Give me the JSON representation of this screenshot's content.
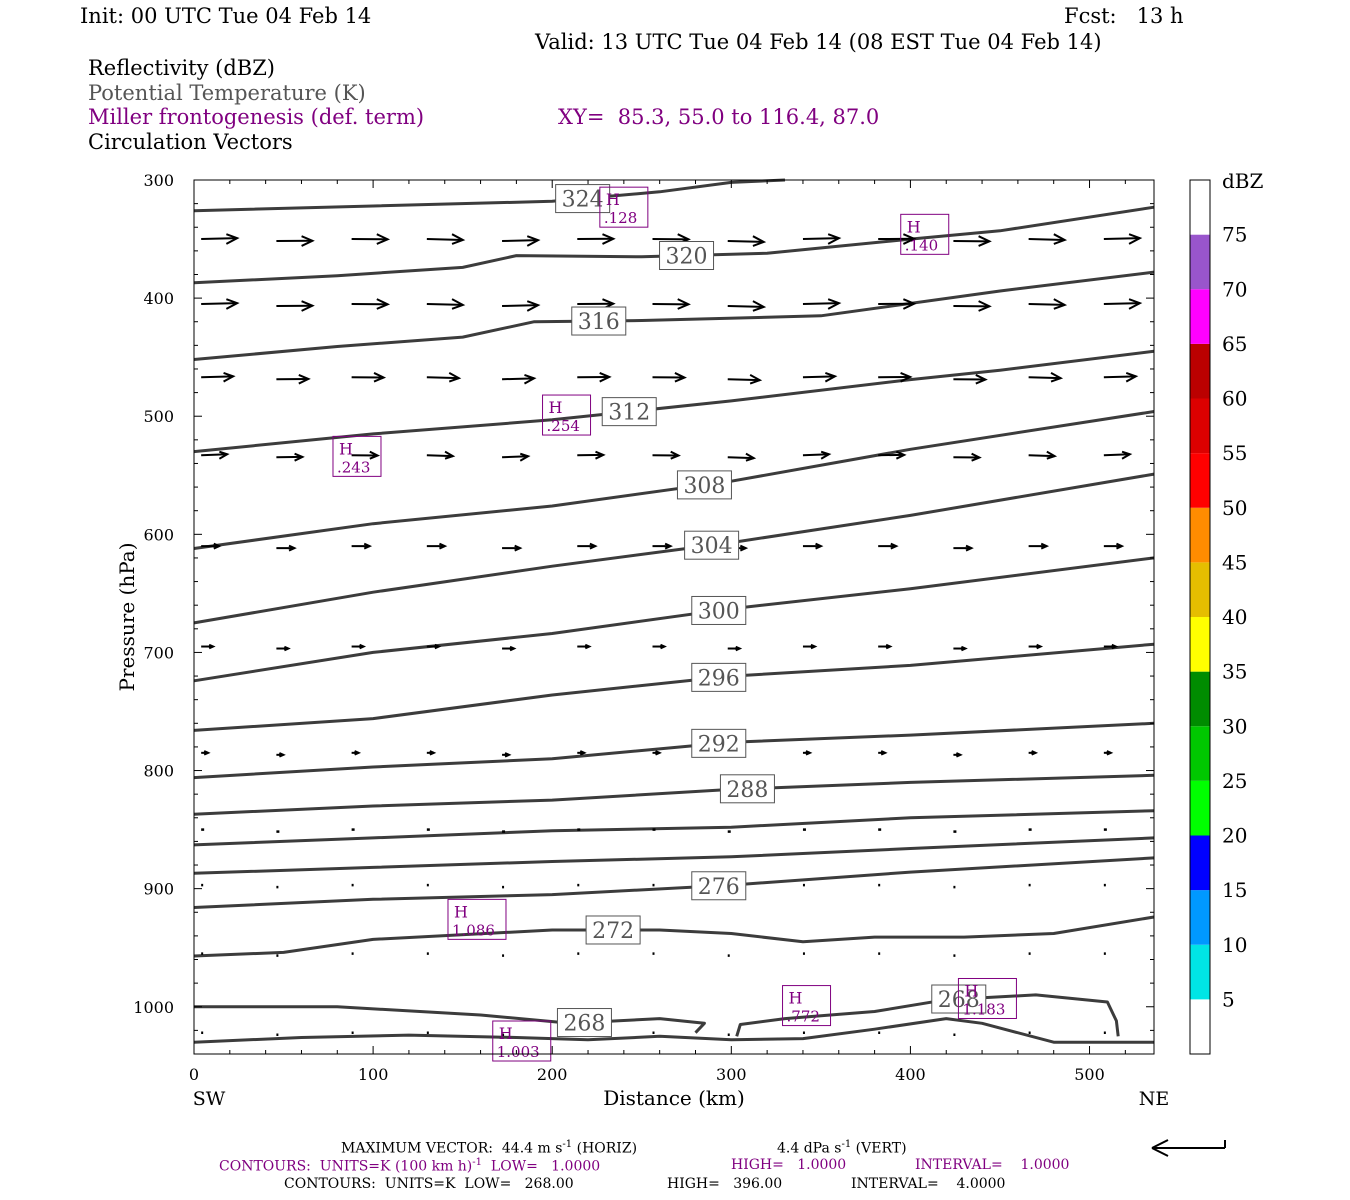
{
  "header": {
    "init": "Init: 00 UTC Tue 04 Feb 14",
    "fcst": "Fcst:   13 h",
    "valid": "Valid: 13 UTC Tue 04 Feb 14 (08 EST Tue 04 Feb 14)",
    "field1": "Reflectivity (dBZ)",
    "field2": "Potential Temperature (K)",
    "field3": "Miller frontogenesis (def. term)",
    "xy": "XY=  85.3, 55.0 to 116.4, 87.0",
    "field4": "Circulation Vectors"
  },
  "colors": {
    "purple": "#800080",
    "theta_line": "#3c3c3c",
    "label_gray": "#555555"
  },
  "chart_data": {
    "type": "cross-section",
    "xlabel": "Distance (km)",
    "ylabel": "Pressure (hPa)",
    "xlim": [
      0,
      536
    ],
    "ylim": [
      300,
      1040
    ],
    "x_ticks": [
      0,
      100,
      200,
      300,
      400,
      500
    ],
    "y_ticks": [
      300,
      400,
      500,
      600,
      700,
      800,
      900,
      1000
    ],
    "x_end_left": "SW",
    "x_end_right": "NE",
    "theta_contours": [
      {
        "value": 324,
        "label": "324",
        "label_x": 217,
        "points": [
          [
            0,
            326
          ],
          [
            100,
            322
          ],
          [
            200,
            318
          ],
          [
            260,
            310
          ],
          [
            300,
            302
          ],
          [
            330,
            300
          ]
        ]
      },
      {
        "value": 320,
        "label": "320",
        "label_x": 275,
        "points": [
          [
            0,
            387
          ],
          [
            80,
            381
          ],
          [
            150,
            374
          ],
          [
            180,
            364
          ],
          [
            250,
            365
          ],
          [
            320,
            362
          ],
          [
            400,
            350
          ],
          [
            450,
            343
          ],
          [
            536,
            323
          ]
        ]
      },
      {
        "value": 316,
        "label": "316",
        "label_x": 226,
        "points": [
          [
            0,
            452
          ],
          [
            80,
            441
          ],
          [
            150,
            433
          ],
          [
            190,
            420
          ],
          [
            250,
            419
          ],
          [
            350,
            415
          ],
          [
            450,
            394
          ],
          [
            536,
            378
          ]
        ]
      },
      {
        "value": 312,
        "label": "312",
        "label_x": 243,
        "points": [
          [
            0,
            530
          ],
          [
            100,
            515
          ],
          [
            200,
            503
          ],
          [
            300,
            487
          ],
          [
            400,
            469
          ],
          [
            450,
            461
          ],
          [
            536,
            445
          ]
        ]
      },
      {
        "value": 308,
        "label": "308",
        "label_x": 285,
        "points": [
          [
            0,
            612
          ],
          [
            100,
            591
          ],
          [
            200,
            576
          ],
          [
            300,
            555
          ],
          [
            400,
            528
          ],
          [
            536,
            496
          ]
        ]
      },
      {
        "value": 304,
        "label": "304",
        "label_x": 289,
        "points": [
          [
            0,
            675
          ],
          [
            100,
            649
          ],
          [
            200,
            627
          ],
          [
            300,
            607
          ],
          [
            400,
            584
          ],
          [
            536,
            549
          ]
        ]
      },
      {
        "value": 300,
        "label": "300",
        "label_x": 293,
        "points": [
          [
            0,
            724
          ],
          [
            100,
            700
          ],
          [
            200,
            684
          ],
          [
            300,
            663
          ],
          [
            400,
            646
          ],
          [
            536,
            620
          ]
        ]
      },
      {
        "value": 296,
        "label": "296",
        "label_x": 293,
        "points": [
          [
            0,
            766
          ],
          [
            100,
            756
          ],
          [
            200,
            736
          ],
          [
            300,
            720
          ],
          [
            400,
            711
          ],
          [
            536,
            693
          ]
        ]
      },
      {
        "value": 292,
        "label": "292",
        "label_x": 293,
        "points": [
          [
            0,
            806
          ],
          [
            100,
            797
          ],
          [
            200,
            790
          ],
          [
            300,
            776
          ],
          [
            400,
            770
          ],
          [
            536,
            760
          ]
        ]
      },
      {
        "value": 288,
        "label": "288",
        "label_x": 309,
        "points": [
          [
            0,
            837
          ],
          [
            100,
            830
          ],
          [
            200,
            825
          ],
          [
            300,
            816
          ],
          [
            400,
            810
          ],
          [
            536,
            804
          ]
        ]
      },
      {
        "value": 284,
        "label": "",
        "label_x": null,
        "points": [
          [
            0,
            863
          ],
          [
            100,
            857
          ],
          [
            200,
            851
          ],
          [
            300,
            848
          ],
          [
            400,
            840
          ],
          [
            536,
            834
          ]
        ]
      },
      {
        "value": 280,
        "label": "",
        "label_x": null,
        "points": [
          [
            0,
            887
          ],
          [
            100,
            882
          ],
          [
            200,
            877
          ],
          [
            300,
            873
          ],
          [
            400,
            866
          ],
          [
            536,
            857
          ]
        ]
      },
      {
        "value": 276,
        "label": "276",
        "label_x": 293,
        "points": [
          [
            0,
            916
          ],
          [
            100,
            909
          ],
          [
            200,
            905
          ],
          [
            300,
            897
          ],
          [
            400,
            886
          ],
          [
            536,
            874
          ]
        ]
      },
      {
        "value": 272,
        "label": "272",
        "label_x": 234,
        "points": [
          [
            0,
            957
          ],
          [
            50,
            954
          ],
          [
            100,
            943
          ],
          [
            200,
            935
          ],
          [
            260,
            935
          ],
          [
            300,
            938
          ],
          [
            340,
            945
          ],
          [
            380,
            941
          ],
          [
            430,
            941
          ],
          [
            480,
            938
          ],
          [
            536,
            924
          ]
        ]
      },
      {
        "value": 268,
        "label": "268",
        "label_x": 218,
        "points": [
          [
            0,
            1000
          ],
          [
            80,
            1000
          ],
          [
            160,
            1007
          ],
          [
            210,
            1014
          ],
          [
            260,
            1010
          ],
          [
            285,
            1014
          ],
          [
            280,
            1022
          ]
        ]
      },
      {
        "value": 268,
        "label": "268",
        "label_x": 427,
        "points": [
          [
            303,
            1025
          ],
          [
            305,
            1015
          ],
          [
            330,
            1010
          ],
          [
            380,
            1004
          ],
          [
            420,
            994
          ],
          [
            470,
            990
          ],
          [
            510,
            996
          ],
          [
            515,
            1012
          ],
          [
            516,
            1025
          ]
        ]
      },
      {
        "value": 264,
        "label": "",
        "label_x": null,
        "points": [
          [
            0,
            1030
          ],
          [
            60,
            1026
          ],
          [
            120,
            1024
          ],
          [
            180,
            1026
          ],
          [
            220,
            1028
          ],
          [
            260,
            1025
          ],
          [
            300,
            1028
          ],
          [
            340,
            1027
          ],
          [
            380,
            1019
          ],
          [
            420,
            1010
          ],
          [
            440,
            1014
          ],
          [
            480,
            1030
          ],
          [
            536,
            1030
          ]
        ]
      }
    ],
    "frontogenesis_highs": [
      {
        "label": "H",
        "value": ".128",
        "x": 240,
        "p": 323
      },
      {
        "label": "H",
        "value": ".140",
        "x": 408,
        "p": 346
      },
      {
        "label": "H",
        "value": ".254",
        "x": 208,
        "p": 499
      },
      {
        "label": "H",
        "value": ".243",
        "x": 91,
        "p": 534
      },
      {
        "label": "H",
        "value": "1.086",
        "x": 158,
        "p": 926
      },
      {
        "label": "H",
        "value": "1.003",
        "x": 183,
        "p": 1029
      },
      {
        "label": "H",
        "value": ".772",
        "x": 342,
        "p": 999
      },
      {
        "label": "H",
        "value": "1.183",
        "x": 443,
        "p": 993
      }
    ],
    "vector_rows": [
      {
        "p": 350,
        "len": 36,
        "start": 0
      },
      {
        "p": 405,
        "len": 36,
        "start": 0
      },
      {
        "p": 467,
        "len": 32,
        "start": 0
      },
      {
        "p": 533,
        "len": 26,
        "start": 0
      },
      {
        "p": 610,
        "len": 18,
        "start": 0
      },
      {
        "p": 695,
        "len": 12,
        "start": 0
      },
      {
        "p": 785,
        "len": 7,
        "start": 0
      },
      {
        "p": 850,
        "len": 3,
        "start": 0
      },
      {
        "p": 897,
        "len": 2,
        "start": 0
      },
      {
        "p": 955,
        "len": 2,
        "start": 0
      },
      {
        "p": 1022,
        "len": 2,
        "start": 0
      }
    ],
    "reflectivity_scale": {
      "unit": "dBZ",
      "labels": [
        "75",
        "70",
        "65",
        "60",
        "55",
        "50",
        "45",
        "40",
        "35",
        "30",
        "25",
        "20",
        "15",
        "10",
        "5"
      ],
      "bands": [
        {
          "from": 0,
          "to": 5,
          "color": "#ffffff"
        },
        {
          "from": 5,
          "to": 10,
          "color": "#00e5e5"
        },
        {
          "from": 10,
          "to": 15,
          "color": "#0099ff"
        },
        {
          "from": 15,
          "to": 20,
          "color": "#0000ff"
        },
        {
          "from": 20,
          "to": 25,
          "color": "#00ff00"
        },
        {
          "from": 25,
          "to": 30,
          "color": "#00c800"
        },
        {
          "from": 30,
          "to": 35,
          "color": "#008c00"
        },
        {
          "from": 35,
          "to": 40,
          "color": "#ffff00"
        },
        {
          "from": 40,
          "to": 45,
          "color": "#e5be00"
        },
        {
          "from": 45,
          "to": 50,
          "color": "#ff8c00"
        },
        {
          "from": 50,
          "to": 55,
          "color": "#ff0000"
        },
        {
          "from": 55,
          "to": 60,
          "color": "#dd0000"
        },
        {
          "from": 60,
          "to": 65,
          "color": "#bb0000"
        },
        {
          "from": 65,
          "to": 70,
          "color": "#ff00ff"
        },
        {
          "from": 70,
          "to": 75,
          "color": "#9955cc"
        },
        {
          "from": 75,
          "to": 80,
          "color": "#ffffff"
        }
      ]
    }
  },
  "footer": {
    "line1a": "MAXIMUM VECTOR:  44.4 m s",
    "line1a_sup": "-1",
    "line1b": " (HORIZ)",
    "line1c": "4.4 dPa s",
    "line1c_sup": "-1",
    "line1d": " (VERT)",
    "line2a": "CONTOURS:  UNITS=K (100 km h)",
    "line2a_sup": "-1",
    "line2b": "  LOW=   1.0000",
    "line2c": "HIGH=   1.0000",
    "line2d": "INTERVAL=    1.0000",
    "line3a": "CONTOURS:  UNITS=K  LOW=   268.00",
    "line3b": "HIGH=   396.00",
    "line3c": "INTERVAL=    4.0000"
  }
}
